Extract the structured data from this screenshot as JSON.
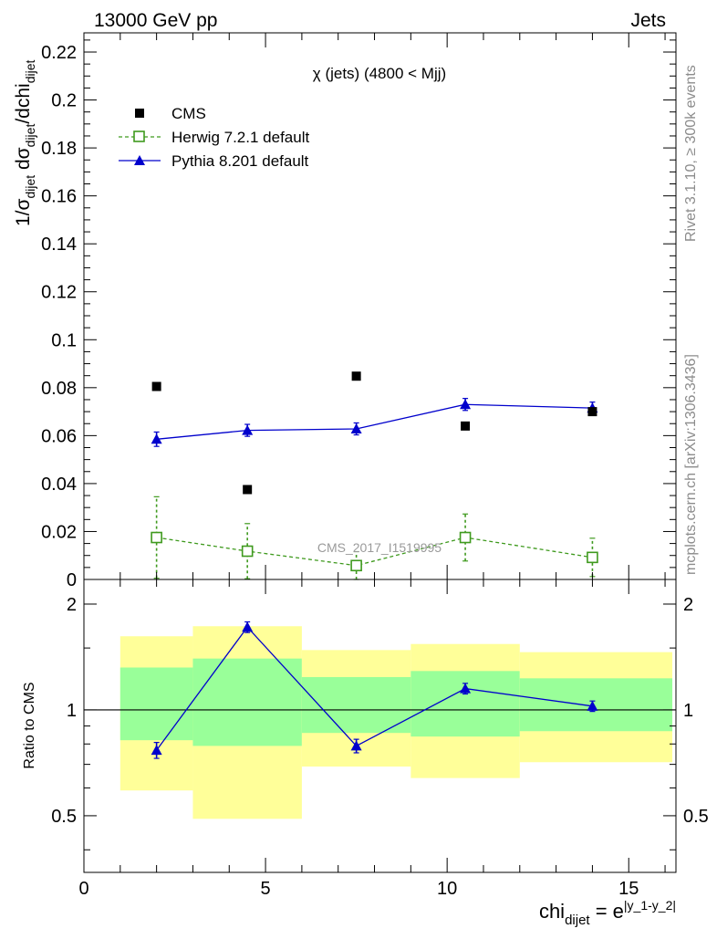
{
  "header": {
    "left_label": "13000 GeV pp",
    "right_label": "Jets",
    "side_rivet": "Rivet 3.1.10, ≥ 300k events",
    "side_site": "mcplots.cern.ch [arXiv:1306.3436]"
  },
  "chart_data": [
    {
      "type": "scatter",
      "panel": "main",
      "title": "χ (jets) (4800 < Mjj)",
      "watermark": "CMS_2017_I1519995",
      "ylabel": "1/σ_dijet dσ_dijet/dchi_dijet",
      "ylabel_parts": {
        "a": "1/σ",
        "a_sub": "dijet",
        "b": " dσ",
        "b_sub": "dijet",
        "c": "/dchi",
        "c_sub": "dijet"
      },
      "xlim": [
        0,
        16.3
      ],
      "ylim": [
        0,
        0.228
      ],
      "yticks": [
        0,
        0.02,
        0.04,
        0.06,
        0.08,
        0.1,
        0.12,
        0.14,
        0.16,
        0.18,
        0.2,
        0.22
      ],
      "ytick_labels": [
        "0",
        "0.02",
        "0.04",
        "0.06",
        "0.08",
        "0.1",
        "0.12",
        "0.14",
        "0.16",
        "0.18",
        "0.2",
        "0.22"
      ],
      "legend": [
        "CMS",
        "Herwig 7.2.1 default",
        "Pythia 8.201 default"
      ],
      "series": [
        {
          "name": "CMS",
          "color": "#000000",
          "marker": "filled-square",
          "x": [
            2.0,
            4.5,
            7.5,
            10.5,
            14.0
          ],
          "y": [
            0.0805,
            0.0375,
            0.0848,
            0.064,
            0.07
          ]
        },
        {
          "name": "Herwig 7.2.1 default",
          "color": "#3f9a1e",
          "marker": "open-square",
          "linestyle": "dashed",
          "x": [
            2.0,
            4.5,
            7.5,
            10.5,
            14.0
          ],
          "y": [
            0.0175,
            0.0118,
            0.0058,
            0.0175,
            0.0092
          ],
          "yerr": [
            0.017,
            0.0115,
            0.0058,
            0.0098,
            0.008
          ]
        },
        {
          "name": "Pythia 8.201 default",
          "color": "#0000cc",
          "marker": "filled-triangle",
          "linestyle": "solid",
          "x": [
            2.0,
            4.5,
            7.5,
            10.5,
            14.0
          ],
          "y": [
            0.0585,
            0.0622,
            0.0628,
            0.073,
            0.0715
          ],
          "yerr": [
            0.003,
            0.0025,
            0.0025,
            0.0025,
            0.0025
          ]
        }
      ]
    },
    {
      "type": "scatter",
      "panel": "ratio",
      "ylabel": "Ratio to CMS",
      "xlabel": "chi_dijet = e^|y_1-y_2|",
      "xlabel_parts": {
        "a": "chi",
        "a_sub": "dijet",
        "b": " = e",
        "b_sup": "|y_1-y_2|"
      },
      "xlim": [
        0,
        16.3
      ],
      "ylim": [
        0.345,
        2.35
      ],
      "log_y": true,
      "xticks": [
        0,
        5,
        10,
        15
      ],
      "xtick_labels": [
        "0",
        "5",
        "10",
        "15"
      ],
      "yticks": [
        0.5,
        1,
        2
      ],
      "ytick_labels": [
        "0.5",
        "1",
        "2"
      ],
      "bands": {
        "green_color": "#99ff99",
        "yellow_color": "#ffff99",
        "bins": [
          {
            "x0": 1,
            "x1": 3,
            "y_lo": 0.59,
            "y_hi": 1.62,
            "g_lo": 0.82,
            "g_hi": 1.32
          },
          {
            "x0": 3,
            "x1": 6,
            "y_lo": 0.49,
            "y_hi": 1.73,
            "g_lo": 0.79,
            "g_hi": 1.4
          },
          {
            "x0": 6,
            "x1": 9,
            "y_lo": 0.69,
            "y_hi": 1.48,
            "g_lo": 0.86,
            "g_hi": 1.24
          },
          {
            "x0": 9,
            "x1": 12,
            "y_lo": 0.64,
            "y_hi": 1.54,
            "g_lo": 0.84,
            "g_hi": 1.29
          },
          {
            "x0": 12,
            "x1": 16.2,
            "y_lo": 0.71,
            "y_hi": 1.46,
            "g_lo": 0.87,
            "g_hi": 1.23
          }
        ]
      },
      "series": [
        {
          "name": "Pythia 8.201 default",
          "color": "#0000cc",
          "marker": "filled-triangle",
          "x": [
            2.0,
            4.5,
            7.5,
            10.5,
            14.0
          ],
          "y": [
            0.768,
            1.72,
            0.79,
            1.15,
            1.025
          ],
          "yerr": [
            0.04,
            0.06,
            0.035,
            0.04,
            0.035
          ]
        }
      ]
    }
  ]
}
